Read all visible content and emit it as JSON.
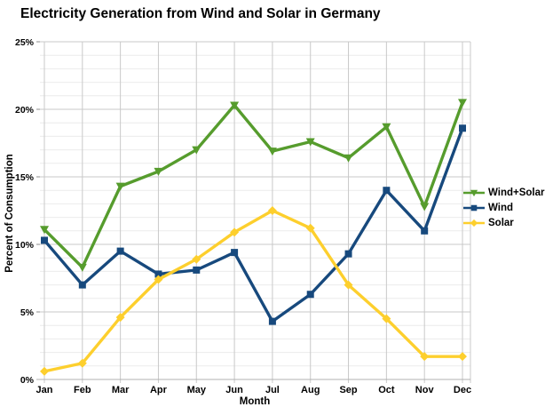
{
  "chart_data": {
    "type": "line",
    "title": "Electricity Generation from Wind and Solar in Germany",
    "xlabel": "Month",
    "ylabel": "Percent of Consumption",
    "x": [
      "Jan",
      "Feb",
      "Mar",
      "Apr",
      "May",
      "Jun",
      "Jul",
      "Aug",
      "Sep",
      "Oct",
      "Nov",
      "Dec"
    ],
    "series": [
      {
        "name": "Wind+Solar",
        "color": "#569c2d",
        "marker": "triangle-down",
        "values": [
          11.1,
          8.3,
          14.3,
          15.4,
          17.0,
          20.3,
          16.9,
          17.6,
          16.4,
          18.7,
          12.8,
          20.5
        ]
      },
      {
        "name": "Wind",
        "color": "#17497d",
        "marker": "square",
        "values": [
          10.3,
          7.0,
          9.5,
          7.8,
          8.1,
          9.4,
          4.3,
          6.3,
          9.3,
          14.0,
          11.0,
          18.6
        ]
      },
      {
        "name": "Solar",
        "color": "#fdcf2d",
        "marker": "diamond",
        "values": [
          0.6,
          1.2,
          4.6,
          7.4,
          8.9,
          10.9,
          12.5,
          11.2,
          7.0,
          4.5,
          1.7,
          1.7
        ]
      }
    ],
    "ylim": [
      0,
      25
    ],
    "y_tick_step": 5,
    "y_minor_step": 1,
    "y_tick_labels": [
      "0%",
      "5%",
      "10%",
      "15%",
      "20%",
      "25%"
    ],
    "grid": true,
    "legend_position": "middle-right"
  },
  "colors": {
    "background": "#ffffff",
    "grid_major": "#c9c9c9",
    "grid_minor": "#ececec",
    "axis_baseline": "#b0b0b0",
    "tick": "#8c8c8c",
    "text": "#000000"
  }
}
